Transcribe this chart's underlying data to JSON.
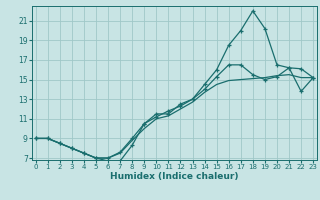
{
  "xlabel": "Humidex (Indice chaleur)",
  "bg_color": "#c8e4e4",
  "grid_color": "#a0c8c8",
  "line_color": "#1a6e6e",
  "xlim": [
    0,
    23
  ],
  "ylim": [
    7,
    22
  ],
  "xticks": [
    0,
    1,
    2,
    3,
    4,
    5,
    6,
    7,
    8,
    9,
    10,
    11,
    12,
    13,
    14,
    15,
    16,
    17,
    18,
    19,
    20,
    21,
    22,
    23
  ],
  "yticks": [
    7,
    9,
    11,
    13,
    15,
    17,
    19,
    21
  ],
  "line1_x": [
    0,
    1,
    2,
    3,
    4,
    5,
    6,
    7,
    8,
    9,
    10,
    11,
    12,
    13,
    14,
    15,
    16,
    17,
    18,
    19,
    20,
    21,
    22,
    23
  ],
  "line1_y": [
    9,
    9,
    8.5,
    8,
    7.5,
    7,
    6.7,
    6.7,
    8.3,
    10.5,
    11.5,
    11.5,
    12.5,
    13.0,
    14.5,
    16.0,
    18.5,
    20.0,
    22.0,
    20.2,
    16.5,
    16.2,
    16.1,
    15.2
  ],
  "line2_x": [
    0,
    1,
    2,
    3,
    4,
    5,
    6,
    7,
    8,
    9,
    10,
    11,
    12,
    13,
    14,
    15,
    16,
    17,
    18,
    19,
    20,
    21,
    22,
    23
  ],
  "line2_y": [
    9,
    9,
    8.5,
    8,
    7.5,
    7,
    7.0,
    7.6,
    9.0,
    10.5,
    11.2,
    11.8,
    12.3,
    13.0,
    14.0,
    15.3,
    16.5,
    16.5,
    15.5,
    15.0,
    15.3,
    16.2,
    13.8,
    15.2
  ],
  "line3_x": [
    0,
    1,
    2,
    3,
    4,
    5,
    6,
    7,
    8,
    9,
    10,
    11,
    12,
    13,
    14,
    15,
    16,
    17,
    18,
    19,
    20,
    21,
    22,
    23
  ],
  "line3_y": [
    9,
    9,
    8.5,
    8,
    7.5,
    7,
    7.0,
    7.5,
    8.8,
    10.0,
    11.0,
    11.3,
    12.0,
    12.7,
    13.7,
    14.5,
    14.9,
    15.0,
    15.1,
    15.2,
    15.4,
    15.5,
    15.2,
    15.2
  ]
}
